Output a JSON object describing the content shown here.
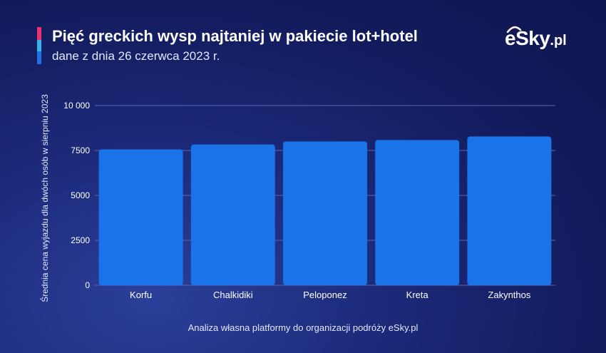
{
  "title": "Pięć greckich wysp najtaniej w pakiecie lot+hotel",
  "subtitle": "dane z dnia 26 czerwca 2023 r.",
  "logo": {
    "main": "eSky",
    "ext": ".pl"
  },
  "colors": {
    "accent_pink": "#e8336f",
    "accent_cyan": "#37b2e6",
    "accent_blue": "#1f6fe6",
    "bar": "#1a73e8",
    "grid": "#5a66b0",
    "axis_text": "#ffffff"
  },
  "footnote": "Analiza własna platformy do organizacji podróży eSky.pl",
  "chart_data": {
    "type": "bar",
    "categories": [
      "Korfu",
      "Chalkidiki",
      "Peloponez",
      "Kreta",
      "Zakynthos"
    ],
    "values": [
      7560,
      7830,
      8000,
      8080,
      8280
    ],
    "title": "Pięć greckich wysp najtaniej w pakiecie lot+hotel",
    "subtitle": "dane z dnia 26 czerwca 2023 r.",
    "xlabel": "",
    "ylabel": "Średnia cena wyjazdu dla dwóch osób w sierpniu 2023",
    "ylim": [
      0,
      10000
    ],
    "yticks": [
      0,
      2500,
      5000,
      7500,
      10000
    ],
    "ytick_labels": [
      "0",
      "2500",
      "5000",
      "7500",
      "10 000"
    ],
    "grid": true,
    "legend": "none"
  }
}
